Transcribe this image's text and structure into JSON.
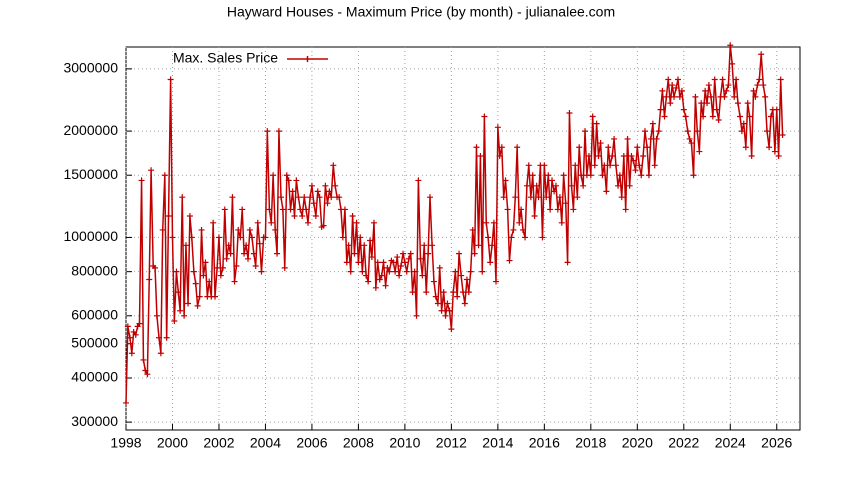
{
  "chart_data": {
    "type": "line",
    "title": "Hayward Houses - Maximum Price (by month) - julianalee.com",
    "log_y": true,
    "grid": true,
    "legend": "top-left",
    "xlim": [
      1998,
      2027
    ],
    "xticks": [
      1998,
      2000,
      2002,
      2004,
      2006,
      2008,
      2010,
      2012,
      2014,
      2016,
      2018,
      2020,
      2022,
      2024,
      2026
    ],
    "ylim": [
      285000,
      3460000
    ],
    "yticks": [
      300000,
      400000,
      500000,
      600000,
      800000,
      1000000,
      1500000,
      2000000,
      3000000
    ],
    "x": [
      1998,
      1998.08,
      1998.17,
      1998.25,
      1998.33,
      1998.42,
      1998.5,
      1998.58,
      1998.67,
      1998.75,
      1998.83,
      1998.92,
      1999,
      1999.08,
      1999.17,
      1999.25,
      1999.33,
      1999.42,
      1999.5,
      1999.58,
      1999.67,
      1999.75,
      1999.83,
      1999.92,
      2000,
      2000.08,
      2000.17,
      2000.25,
      2000.33,
      2000.42,
      2000.5,
      2000.58,
      2000.67,
      2000.75,
      2000.83,
      2000.92,
      2001,
      2001.08,
      2001.17,
      2001.25,
      2001.33,
      2001.42,
      2001.5,
      2001.58,
      2001.67,
      2001.75,
      2001.83,
      2001.92,
      2002,
      2002.08,
      2002.17,
      2002.25,
      2002.33,
      2002.42,
      2002.5,
      2002.58,
      2002.67,
      2002.75,
      2002.83,
      2002.92,
      2003,
      2003.08,
      2003.17,
      2003.25,
      2003.33,
      2003.42,
      2003.5,
      2003.58,
      2003.67,
      2003.75,
      2003.83,
      2003.92,
      2004,
      2004.08,
      2004.17,
      2004.25,
      2004.33,
      2004.42,
      2004.5,
      2004.58,
      2004.67,
      2004.75,
      2004.83,
      2004.92,
      2005,
      2005.08,
      2005.17,
      2005.25,
      2005.33,
      2005.42,
      2005.5,
      2005.58,
      2005.67,
      2005.75,
      2005.83,
      2005.92,
      2006,
      2006.08,
      2006.17,
      2006.25,
      2006.33,
      2006.42,
      2006.5,
      2006.58,
      2006.67,
      2006.75,
      2006.83,
      2006.92,
      2007,
      2007.08,
      2007.17,
      2007.25,
      2007.33,
      2007.42,
      2007.5,
      2007.58,
      2007.67,
      2007.75,
      2007.83,
      2007.92,
      2008,
      2008.08,
      2008.17,
      2008.25,
      2008.33,
      2008.42,
      2008.5,
      2008.58,
      2008.67,
      2008.75,
      2008.83,
      2008.92,
      2009,
      2009.08,
      2009.17,
      2009.25,
      2009.33,
      2009.42,
      2009.5,
      2009.58,
      2009.67,
      2009.75,
      2009.83,
      2009.92,
      2010,
      2010.08,
      2010.17,
      2010.25,
      2010.33,
      2010.42,
      2010.5,
      2010.58,
      2010.67,
      2010.75,
      2010.83,
      2010.92,
      2011,
      2011.08,
      2011.17,
      2011.25,
      2011.33,
      2011.42,
      2011.5,
      2011.58,
      2011.67,
      2011.75,
      2011.83,
      2011.92,
      2012,
      2012.08,
      2012.17,
      2012.25,
      2012.33,
      2012.42,
      2012.5,
      2012.58,
      2012.67,
      2012.75,
      2012.83,
      2012.92,
      2013,
      2013.08,
      2013.17,
      2013.25,
      2013.33,
      2013.42,
      2013.5,
      2013.58,
      2013.67,
      2013.75,
      2013.83,
      2013.92,
      2014,
      2014.08,
      2014.17,
      2014.25,
      2014.33,
      2014.42,
      2014.5,
      2014.58,
      2014.67,
      2014.75,
      2014.83,
      2014.92,
      2015,
      2015.08,
      2015.17,
      2015.25,
      2015.33,
      2015.42,
      2015.5,
      2015.58,
      2015.67,
      2015.75,
      2015.83,
      2015.92,
      2016,
      2016.08,
      2016.17,
      2016.25,
      2016.33,
      2016.42,
      2016.5,
      2016.58,
      2016.67,
      2016.75,
      2016.83,
      2016.92,
      2017,
      2017.08,
      2017.17,
      2017.25,
      2017.33,
      2017.42,
      2017.5,
      2017.58,
      2017.67,
      2017.75,
      2017.83,
      2017.92,
      2018,
      2018.08,
      2018.17,
      2018.25,
      2018.33,
      2018.42,
      2018.5,
      2018.58,
      2018.67,
      2018.75,
      2018.83,
      2018.92,
      2019,
      2019.08,
      2019.17,
      2019.25,
      2019.33,
      2019.42,
      2019.5,
      2019.58,
      2019.67,
      2019.75,
      2019.83,
      2019.92,
      2020,
      2020.08,
      2020.17,
      2020.25,
      2020.33,
      2020.42,
      2020.5,
      2020.58,
      2020.67,
      2020.75,
      2020.83,
      2020.92,
      2021,
      2021.08,
      2021.17,
      2021.25,
      2021.33,
      2021.42,
      2021.5,
      2021.58,
      2021.67,
      2021.75,
      2021.83,
      2021.92,
      2022,
      2022.08,
      2022.17,
      2022.25,
      2022.33,
      2022.42,
      2022.5,
      2022.58,
      2022.67,
      2022.75,
      2022.83,
      2022.92,
      2023,
      2023.08,
      2023.17,
      2023.25,
      2023.33,
      2023.42,
      2023.5,
      2023.58,
      2023.67,
      2023.75,
      2023.83,
      2023.92,
      2024,
      2024.08,
      2024.17,
      2024.25,
      2024.33,
      2024.42,
      2024.5,
      2024.58,
      2024.67,
      2024.75,
      2024.83,
      2024.92,
      2025,
      2025.08,
      2025.17,
      2025.25,
      2025.33,
      2025.42,
      2025.5,
      2025.58,
      2025.67,
      2025.75,
      2025.83,
      2025.92,
      2026,
      2026.08,
      2026.17,
      2026.25
    ],
    "series": [
      {
        "name": "Max. Sales Price",
        "color": "#c00000",
        "values": [
          340000,
          560000,
          520000,
          470000,
          540000,
          530000,
          560000,
          570000,
          1450000,
          450000,
          420000,
          410000,
          760000,
          1550000,
          830000,
          820000,
          600000,
          520000,
          470000,
          1050000,
          1500000,
          520000,
          1150000,
          2800000,
          1000000,
          580000,
          800000,
          700000,
          620000,
          1300000,
          600000,
          950000,
          650000,
          1150000,
          1000000,
          800000,
          740000,
          640000,
          680000,
          1050000,
          780000,
          850000,
          680000,
          750000,
          680000,
          1100000,
          680000,
          820000,
          1000000,
          780000,
          820000,
          1200000,
          870000,
          950000,
          900000,
          1300000,
          750000,
          830000,
          1050000,
          1000000,
          1200000,
          900000,
          950000,
          870000,
          1050000,
          1000000,
          900000,
          830000,
          1100000,
          960000,
          800000,
          1000000,
          1000000,
          2000000,
          1200000,
          1100000,
          1500000,
          1050000,
          900000,
          2000000,
          1300000,
          1200000,
          820000,
          1500000,
          1450000,
          1200000,
          1350000,
          1150000,
          1450000,
          1300000,
          1200000,
          1150000,
          1300000,
          1200000,
          1100000,
          1300000,
          1400000,
          1250000,
          1150000,
          1350000,
          1300000,
          1070000,
          1080000,
          1400000,
          1250000,
          1350000,
          1300000,
          1600000,
          1400000,
          1300000,
          1300000,
          1200000,
          1000000,
          1200000,
          850000,
          950000,
          800000,
          1150000,
          900000,
          1100000,
          850000,
          1000000,
          800000,
          950000,
          780000,
          750000,
          980000,
          880000,
          1100000,
          720000,
          850000,
          760000,
          780000,
          850000,
          730000,
          820000,
          800000,
          860000,
          850000,
          800000,
          880000,
          780000,
          830000,
          900000,
          850000,
          800000,
          870000,
          900000,
          700000,
          800000,
          600000,
          1450000,
          870000,
          780000,
          950000,
          700000,
          900000,
          1300000,
          950000,
          750000,
          680000,
          650000,
          820000,
          620000,
          700000,
          600000,
          650000,
          620000,
          550000,
          700000,
          800000,
          680000,
          900000,
          780000,
          700000,
          650000,
          760000,
          700000,
          800000,
          1050000,
          900000,
          1800000,
          950000,
          1700000,
          800000,
          2200000,
          1100000,
          1000000,
          850000,
          950000,
          1100000,
          750000,
          2050000,
          1700000,
          1800000,
          1300000,
          1450000,
          1200000,
          860000,
          1000000,
          1050000,
          1300000,
          1800000,
          1100000,
          1200000,
          1050000,
          1000000,
          1400000,
          1600000,
          1300000,
          1500000,
          1150000,
          1400000,
          1300000,
          1600000,
          1000000,
          1600000,
          1300000,
          1500000,
          1200000,
          1450000,
          1350000,
          1400000,
          1200000,
          1300000,
          1100000,
          1500000,
          1250000,
          850000,
          2250000,
          1400000,
          1200000,
          1600000,
          1300000,
          1800000,
          1500000,
          1400000,
          2000000,
          1500000,
          1700000,
          1500000,
          2200000,
          1600000,
          2100000,
          1700000,
          1850000,
          1500000,
          1600000,
          1350000,
          1800000,
          1600000,
          1700000,
          1900000,
          1600000,
          1400000,
          1500000,
          1300000,
          1700000,
          1200000,
          1900000,
          1400000,
          1700000,
          1650000,
          1550000,
          1800000,
          1600000,
          1500000,
          1700000,
          2000000,
          1800000,
          1500000,
          1900000,
          2100000,
          1600000,
          1900000,
          2000000,
          2300000,
          2600000,
          2200000,
          2500000,
          2800000,
          2400000,
          2700000,
          2500000,
          2650000,
          2800000,
          2500000,
          2600000,
          2300000,
          2200000,
          2000000,
          1900000,
          1850000,
          1500000,
          2500000,
          2000000,
          1750000,
          2400000,
          2200000,
          2600000,
          2400000,
          2700000,
          2500000,
          2200000,
          2800000,
          2300000,
          2150000,
          2500000,
          2800000,
          2500000,
          2600000,
          2700000,
          3500000,
          3100000,
          2500000,
          2800000,
          2400000,
          2200000,
          2000000,
          2100000,
          1800000,
          2400000,
          2200000,
          1700000,
          2600000,
          2500000,
          2700000,
          2800000,
          3300000,
          2700000,
          2500000,
          2000000,
          1800000,
          2200000,
          2300000,
          1750000,
          2300000,
          1700000,
          2800000,
          1950000
        ]
      }
    ]
  }
}
